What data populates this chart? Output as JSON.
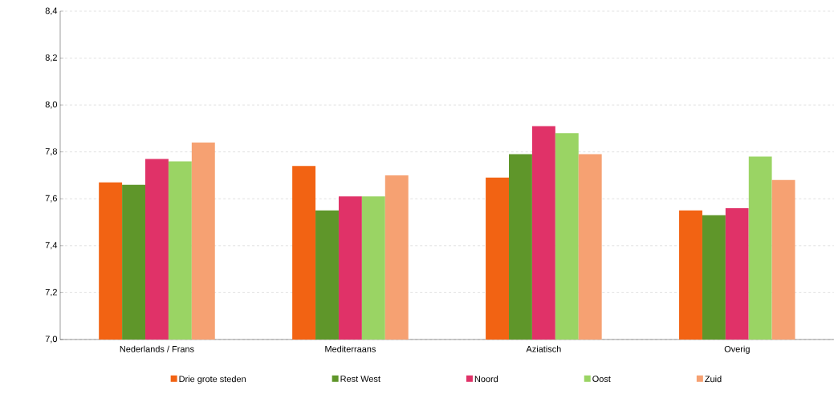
{
  "chart_data": {
    "type": "bar",
    "categories": [
      "Nederlands / Frans",
      "Mediterraans",
      "Aziatisch",
      "Overig"
    ],
    "series": [
      {
        "name": "Drie grote steden",
        "color": "#f26313",
        "values": [
          7.67,
          7.74,
          7.69,
          7.55
        ]
      },
      {
        "name": "Rest West",
        "color": "#5f962a",
        "values": [
          7.66,
          7.55,
          7.79,
          7.53
        ]
      },
      {
        "name": "Noord",
        "color": "#e03268",
        "values": [
          7.77,
          7.61,
          7.91,
          7.56
        ]
      },
      {
        "name": "Oost",
        "color": "#9ad464",
        "values": [
          7.76,
          7.61,
          7.88,
          7.78
        ]
      },
      {
        "name": "Zuid",
        "color": "#f6a172",
        "values": [
          7.84,
          7.7,
          7.79,
          7.68
        ]
      }
    ],
    "ylim": [
      7.0,
      8.4
    ],
    "yticks": [
      {
        "value": 7.0,
        "label": "7,0"
      },
      {
        "value": 7.2,
        "label": "7,2"
      },
      {
        "value": 7.4,
        "label": "7,4"
      },
      {
        "value": 7.6,
        "label": "7,6"
      },
      {
        "value": 7.8,
        "label": "7,8"
      },
      {
        "value": 8.0,
        "label": "8,0"
      },
      {
        "value": 8.2,
        "label": "8,2"
      },
      {
        "value": 8.4,
        "label": "8,4"
      }
    ],
    "grid": "y",
    "legend": "bottom"
  }
}
